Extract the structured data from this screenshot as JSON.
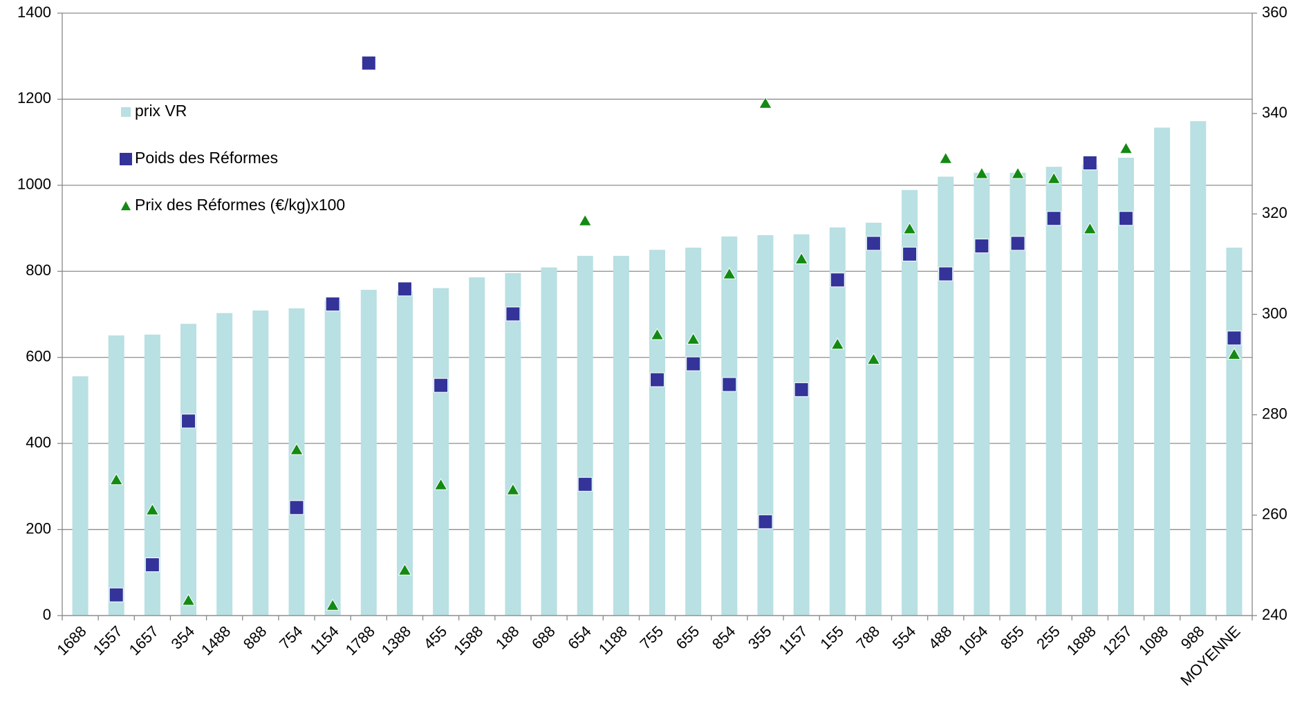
{
  "chart_data": {
    "type": "bar",
    "categories": [
      "1688",
      "1557",
      "1657",
      "354",
      "1488",
      "888",
      "754",
      "1154",
      "1788",
      "1388",
      "455",
      "1588",
      "188",
      "688",
      "654",
      "1188",
      "755",
      "655",
      "854",
      "355",
      "1157",
      "155",
      "788",
      "554",
      "488",
      "1054",
      "855",
      "255",
      "1888",
      "1257",
      "1088",
      "988",
      "MOYENNE"
    ],
    "series": [
      {
        "name": "prix VR",
        "type": "bar",
        "color": "#b9e0e3",
        "marker": "square",
        "values": [
          556,
          651,
          653,
          678,
          703,
          709,
          714,
          732,
          757,
          755,
          761,
          786,
          796,
          809,
          836,
          836,
          850,
          855,
          881,
          884,
          886,
          902,
          913,
          989,
          1020,
          1029,
          1029,
          1043,
          1048,
          1064,
          1134,
          1149,
          855
        ]
      },
      {
        "name": "Poids des Réformes",
        "type": "scatter",
        "color": "#33339a",
        "marker": "square",
        "values": [
          null,
          48,
          118,
          452,
          null,
          null,
          251,
          724,
          1284,
          759,
          535,
          null,
          701,
          null,
          305,
          null,
          548,
          585,
          537,
          218,
          525,
          780,
          865,
          840,
          794,
          859,
          865,
          923,
          1052,
          923,
          null,
          null,
          645
        ]
      },
      {
        "name": "Prix des Réformes (€/kg)x100",
        "type": "scatter",
        "color": "#138a13",
        "marker": "triangle",
        "axis": "y2",
        "values": [
          null,
          267,
          261,
          243,
          null,
          null,
          273,
          242,
          null,
          249,
          266,
          null,
          265,
          null,
          318.6,
          null,
          295.9,
          295,
          308,
          342,
          311,
          294,
          291,
          317,
          331,
          328,
          328,
          327,
          317,
          333,
          null,
          null,
          292
        ]
      }
    ],
    "ylim": [
      0,
      1400
    ],
    "yticks": [
      0,
      200,
      400,
      600,
      800,
      1000,
      1200,
      1400
    ],
    "y2lim": [
      240,
      360
    ],
    "y2ticks": [
      240,
      260,
      280,
      300,
      320,
      340,
      360
    ],
    "grid": true,
    "legend": "top-left"
  }
}
